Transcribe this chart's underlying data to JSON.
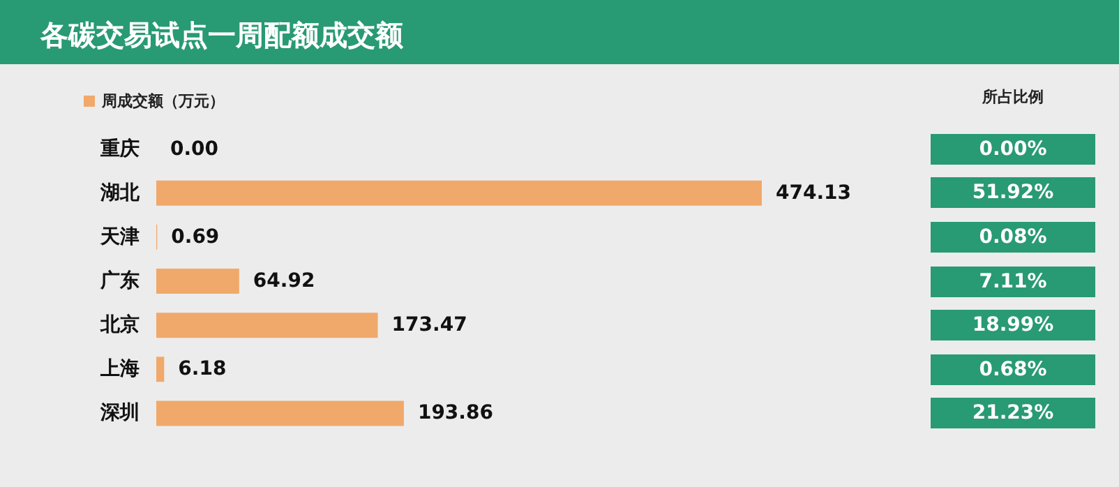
{
  "chart_data": [
    {
      "type": "bar",
      "orientation": "horizontal",
      "title": "各碳交易试点一周配额成交额",
      "categories": [
        "重庆",
        "湖北",
        "天津",
        "广东",
        "北京",
        "上海",
        "深圳"
      ],
      "series": [
        {
          "name": "周成交额（万元）",
          "color": "#f0a96b",
          "values": [
            0.0,
            474.13,
            0.69,
            64.92,
            173.47,
            6.18,
            193.86
          ],
          "value_labels": [
            "0.00",
            "474.13",
            "0.69",
            "64.92",
            "173.47",
            "6.18",
            "193.86"
          ]
        }
      ],
      "legend": "top left"
    },
    {
      "type": "other",
      "title": "所占比例",
      "annotations": [
        "0.00%",
        "51.92%",
        "0.08%",
        "7.11%",
        "18.99%",
        "0.68%",
        "21.23%"
      ],
      "color": "#289a74"
    }
  ]
}
